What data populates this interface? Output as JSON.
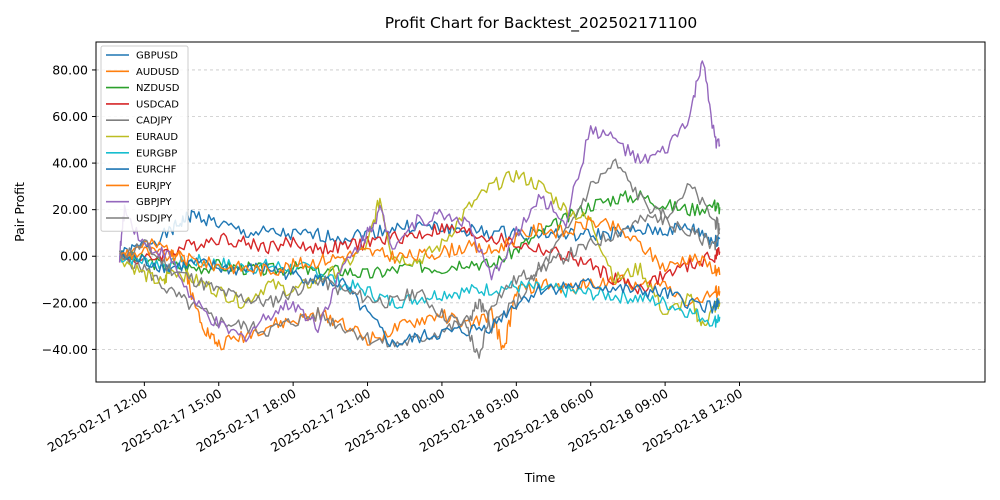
{
  "chart_data": {
    "type": "line",
    "title": "Profit Chart for Backtest_202502171100",
    "xlabel": "Time",
    "ylabel": "Pair Profit",
    "x_range_hours": [
      -1.95,
      33.9
    ],
    "x_ticks": [
      {
        "hours": 0,
        "label": "2025-02-17 12:00"
      },
      {
        "hours": 3,
        "label": "2025-02-17 15:00"
      },
      {
        "hours": 6,
        "label": "2025-02-17 18:00"
      },
      {
        "hours": 9,
        "label": "2025-02-17 21:00"
      },
      {
        "hours": 12,
        "label": "2025-02-18 00:00"
      },
      {
        "hours": 15,
        "label": "2025-02-18 03:00"
      },
      {
        "hours": 18,
        "label": "2025-02-18 06:00"
      },
      {
        "hours": 21,
        "label": "2025-02-18 09:00"
      },
      {
        "hours": 24,
        "label": "2025-02-18 12:00"
      }
    ],
    "ylim": [
      -54,
      92
    ],
    "y_ticks": [
      -40,
      -20,
      0,
      20,
      40,
      60,
      80
    ],
    "y_tick_labels": [
      "−40.00",
      "−20.00",
      "0.00",
      "20.00",
      "40.00",
      "60.00",
      "80.00"
    ],
    "grid": "horizontal dashed",
    "legend": "upper-left",
    "series": [
      {
        "name": "GBPUSD",
        "color": "#1f77b4",
        "x": [
          -1,
          0,
          1,
          1.5,
          2,
          3,
          4,
          5,
          6,
          7,
          8,
          9,
          10,
          11,
          12,
          13,
          14,
          15,
          16,
          17,
          18,
          19,
          20,
          21,
          22,
          22.5,
          23,
          23.2
        ],
        "y": [
          0,
          5,
          10,
          15,
          18,
          14,
          10,
          10,
          9,
          9,
          8,
          10,
          12,
          13,
          12,
          11,
          10,
          10,
          10,
          9,
          9,
          10,
          11,
          11,
          12,
          10,
          6,
          8
        ]
      },
      {
        "name": "AUDUSD",
        "color": "#ff7f0e",
        "x": [
          -1,
          0,
          1,
          1.5,
          2,
          2.5,
          3,
          4,
          5,
          6,
          7,
          8,
          9,
          10,
          11,
          12,
          13,
          14,
          14.5,
          15,
          16,
          17,
          18,
          19,
          20,
          21,
          22,
          23,
          23.2
        ],
        "y": [
          0,
          5,
          3,
          2,
          -20,
          -32,
          -38,
          -34,
          -30,
          -28,
          -25,
          -28,
          -36,
          -32,
          -28,
          -25,
          -30,
          -25,
          -40,
          -15,
          -12,
          -14,
          -12,
          -10,
          -13,
          -12,
          -20,
          -16,
          -15
        ]
      },
      {
        "name": "NZDUSD",
        "color": "#2ca02c",
        "x": [
          -1,
          0,
          1,
          2,
          3,
          4,
          5,
          6,
          7,
          8,
          9,
          10,
          11,
          12,
          13,
          14,
          15,
          16,
          17,
          18,
          19,
          20,
          21,
          22,
          23,
          23.2
        ],
        "y": [
          0,
          -2,
          -4,
          -5,
          -4,
          -5,
          -6,
          -5,
          -7,
          -6,
          -8,
          -6,
          -4,
          -5,
          -2,
          -4,
          3,
          10,
          16,
          22,
          25,
          26,
          22,
          20,
          22,
          21
        ]
      },
      {
        "name": "USDCAD",
        "color": "#d62728",
        "x": [
          -1,
          0,
          1,
          2,
          3,
          4,
          5,
          6,
          7,
          8,
          9,
          10,
          11,
          12,
          13,
          14,
          15,
          16,
          17,
          18,
          19,
          20,
          21,
          22,
          23,
          23.2
        ],
        "y": [
          0,
          -2,
          2,
          5,
          8,
          6,
          4,
          6,
          3,
          4,
          6,
          8,
          9,
          12,
          10,
          8,
          5,
          3,
          0,
          -4,
          -10,
          -14,
          -8,
          -4,
          0,
          2
        ]
      },
      {
        "name": "CADJPY",
        "color": "#7f7f7f",
        "x": [
          -1,
          0,
          1,
          2,
          3,
          4,
          5,
          6,
          7,
          8,
          9,
          10,
          11,
          12,
          13,
          13.5,
          14,
          15,
          16,
          17,
          18,
          19,
          20,
          21,
          22,
          23,
          23.2
        ],
        "y": [
          0,
          -5,
          -15,
          -22,
          -28,
          -30,
          -32,
          -28,
          -25,
          -30,
          -35,
          -38,
          -36,
          -32,
          -28,
          -20,
          -30,
          -20,
          -5,
          10,
          30,
          40,
          25,
          15,
          10,
          5,
          10
        ]
      },
      {
        "name": "EURAUD",
        "color": "#bcbd22",
        "x": [
          -1,
          0,
          0.8,
          1,
          2,
          3,
          4,
          5,
          6,
          7,
          8,
          9,
          9.5,
          10,
          11,
          12,
          13,
          14,
          15,
          16,
          17,
          18,
          19,
          20,
          21,
          22,
          22.5,
          23,
          23.2
        ],
        "y": [
          0,
          -8,
          -12,
          -5,
          -10,
          -15,
          -20,
          -12,
          -15,
          -10,
          -5,
          5,
          25,
          0,
          -2,
          5,
          20,
          30,
          35,
          30,
          20,
          15,
          -10,
          -5,
          -25,
          -18,
          -30,
          -22,
          -20
        ]
      },
      {
        "name": "EURGBP",
        "color": "#17becf",
        "x": [
          -1,
          0,
          1,
          2,
          3,
          4,
          5,
          6,
          7,
          8,
          9,
          10,
          11,
          12,
          13,
          14,
          15,
          16,
          17,
          18,
          19,
          20,
          21,
          22,
          23,
          23.2
        ],
        "y": [
          0,
          -2,
          -4,
          -2,
          -3,
          -5,
          -4,
          -5,
          -6,
          -12,
          -15,
          -20,
          -18,
          -16,
          -15,
          -14,
          -13,
          -14,
          -15,
          -16,
          -17,
          -18,
          -20,
          -24,
          -28,
          -26
        ]
      },
      {
        "name": "EURCHF",
        "color": "#1f77b4",
        "x": [
          -1,
          0,
          1,
          2,
          3,
          4,
          5,
          6,
          7,
          8,
          9,
          10,
          11,
          12,
          13,
          14,
          15,
          16,
          17,
          18,
          19,
          20,
          21,
          22,
          23,
          23.2
        ],
        "y": [
          0,
          -2,
          -5,
          -3,
          -5,
          -6,
          -5,
          -8,
          -10,
          -12,
          -25,
          -38,
          -35,
          -33,
          -32,
          -30,
          -20,
          -14,
          -13,
          -12,
          -14,
          -15,
          -16,
          -20,
          -22,
          -20
        ]
      },
      {
        "name": "EURJPY",
        "color": "#ff7f0e",
        "x": [
          -1,
          0,
          1,
          2,
          3,
          4,
          5,
          6,
          7,
          8,
          9,
          10,
          11,
          12,
          13,
          14,
          15,
          16,
          17,
          18,
          19,
          20,
          21,
          22,
          23,
          23.2
        ],
        "y": [
          0,
          2,
          0,
          -2,
          -4,
          -5,
          -6,
          -4,
          -2,
          0,
          2,
          0,
          0,
          2,
          4,
          2,
          8,
          12,
          10,
          15,
          12,
          5,
          -5,
          0,
          -5,
          -8
        ]
      },
      {
        "name": "GBPJPY",
        "color": "#9467bd",
        "x": [
          -1,
          -0.8,
          0,
          1,
          2,
          3,
          4,
          5,
          6,
          7,
          8,
          9,
          9.5,
          10,
          11,
          12,
          13,
          14,
          15,
          16,
          17,
          18,
          19,
          20,
          21,
          22,
          22.5,
          23,
          23.2
        ],
        "y": [
          0,
          20,
          5,
          0,
          -20,
          -30,
          -35,
          -25,
          -20,
          -30,
          -5,
          10,
          20,
          5,
          15,
          18,
          15,
          -10,
          10,
          25,
          15,
          55,
          50,
          40,
          45,
          60,
          85,
          50,
          48
        ]
      },
      {
        "name": "USDJPY",
        "color": "#7f7f7f",
        "x": [
          -1,
          0,
          1,
          2,
          3,
          4,
          5,
          6,
          7,
          8,
          9,
          10,
          11,
          12,
          13,
          13.5,
          14,
          15,
          16,
          17,
          18,
          19,
          20,
          21,
          22,
          23,
          23.2
        ],
        "y": [
          0,
          5,
          -5,
          -10,
          -15,
          -18,
          -20,
          -15,
          -10,
          -15,
          -18,
          -20,
          -15,
          -25,
          -30,
          -45,
          -20,
          -10,
          -5,
          0,
          5,
          10,
          15,
          18,
          30,
          15,
          12
        ]
      }
    ]
  }
}
